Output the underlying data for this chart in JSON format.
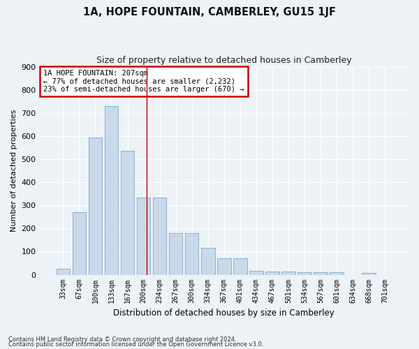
{
  "title": "1A, HOPE FOUNTAIN, CAMBERLEY, GU15 1JF",
  "subtitle": "Size of property relative to detached houses in Camberley",
  "xlabel": "Distribution of detached houses by size in Camberley",
  "ylabel": "Number of detached properties",
  "categories": [
    "33sqm",
    "67sqm",
    "100sqm",
    "133sqm",
    "167sqm",
    "200sqm",
    "234sqm",
    "267sqm",
    "300sqm",
    "334sqm",
    "367sqm",
    "401sqm",
    "434sqm",
    "467sqm",
    "501sqm",
    "534sqm",
    "567sqm",
    "601sqm",
    "634sqm",
    "668sqm",
    "701sqm"
  ],
  "values": [
    25,
    270,
    595,
    730,
    535,
    335,
    335,
    180,
    180,
    115,
    70,
    70,
    18,
    15,
    15,
    10,
    10,
    10,
    0,
    8,
    0
  ],
  "bar_color": "#c9d9ea",
  "bar_edge_color": "#7aaac8",
  "vline_color": "#cc0000",
  "annotation_text": "1A HOPE FOUNTAIN: 207sqm\n← 77% of detached houses are smaller (2,232)\n23% of semi-detached houses are larger (670) →",
  "annotation_box_color": "#ffffff",
  "annotation_box_edge_color": "#cc0000",
  "footnote1": "Contains HM Land Registry data © Crown copyright and database right 2024.",
  "footnote2": "Contains public sector information licensed under the Open Government Licence v3.0.",
  "background_color": "#edf2f7",
  "ylim": [
    0,
    900
  ],
  "yticks": [
    0,
    100,
    200,
    300,
    400,
    500,
    600,
    700,
    800,
    900
  ]
}
